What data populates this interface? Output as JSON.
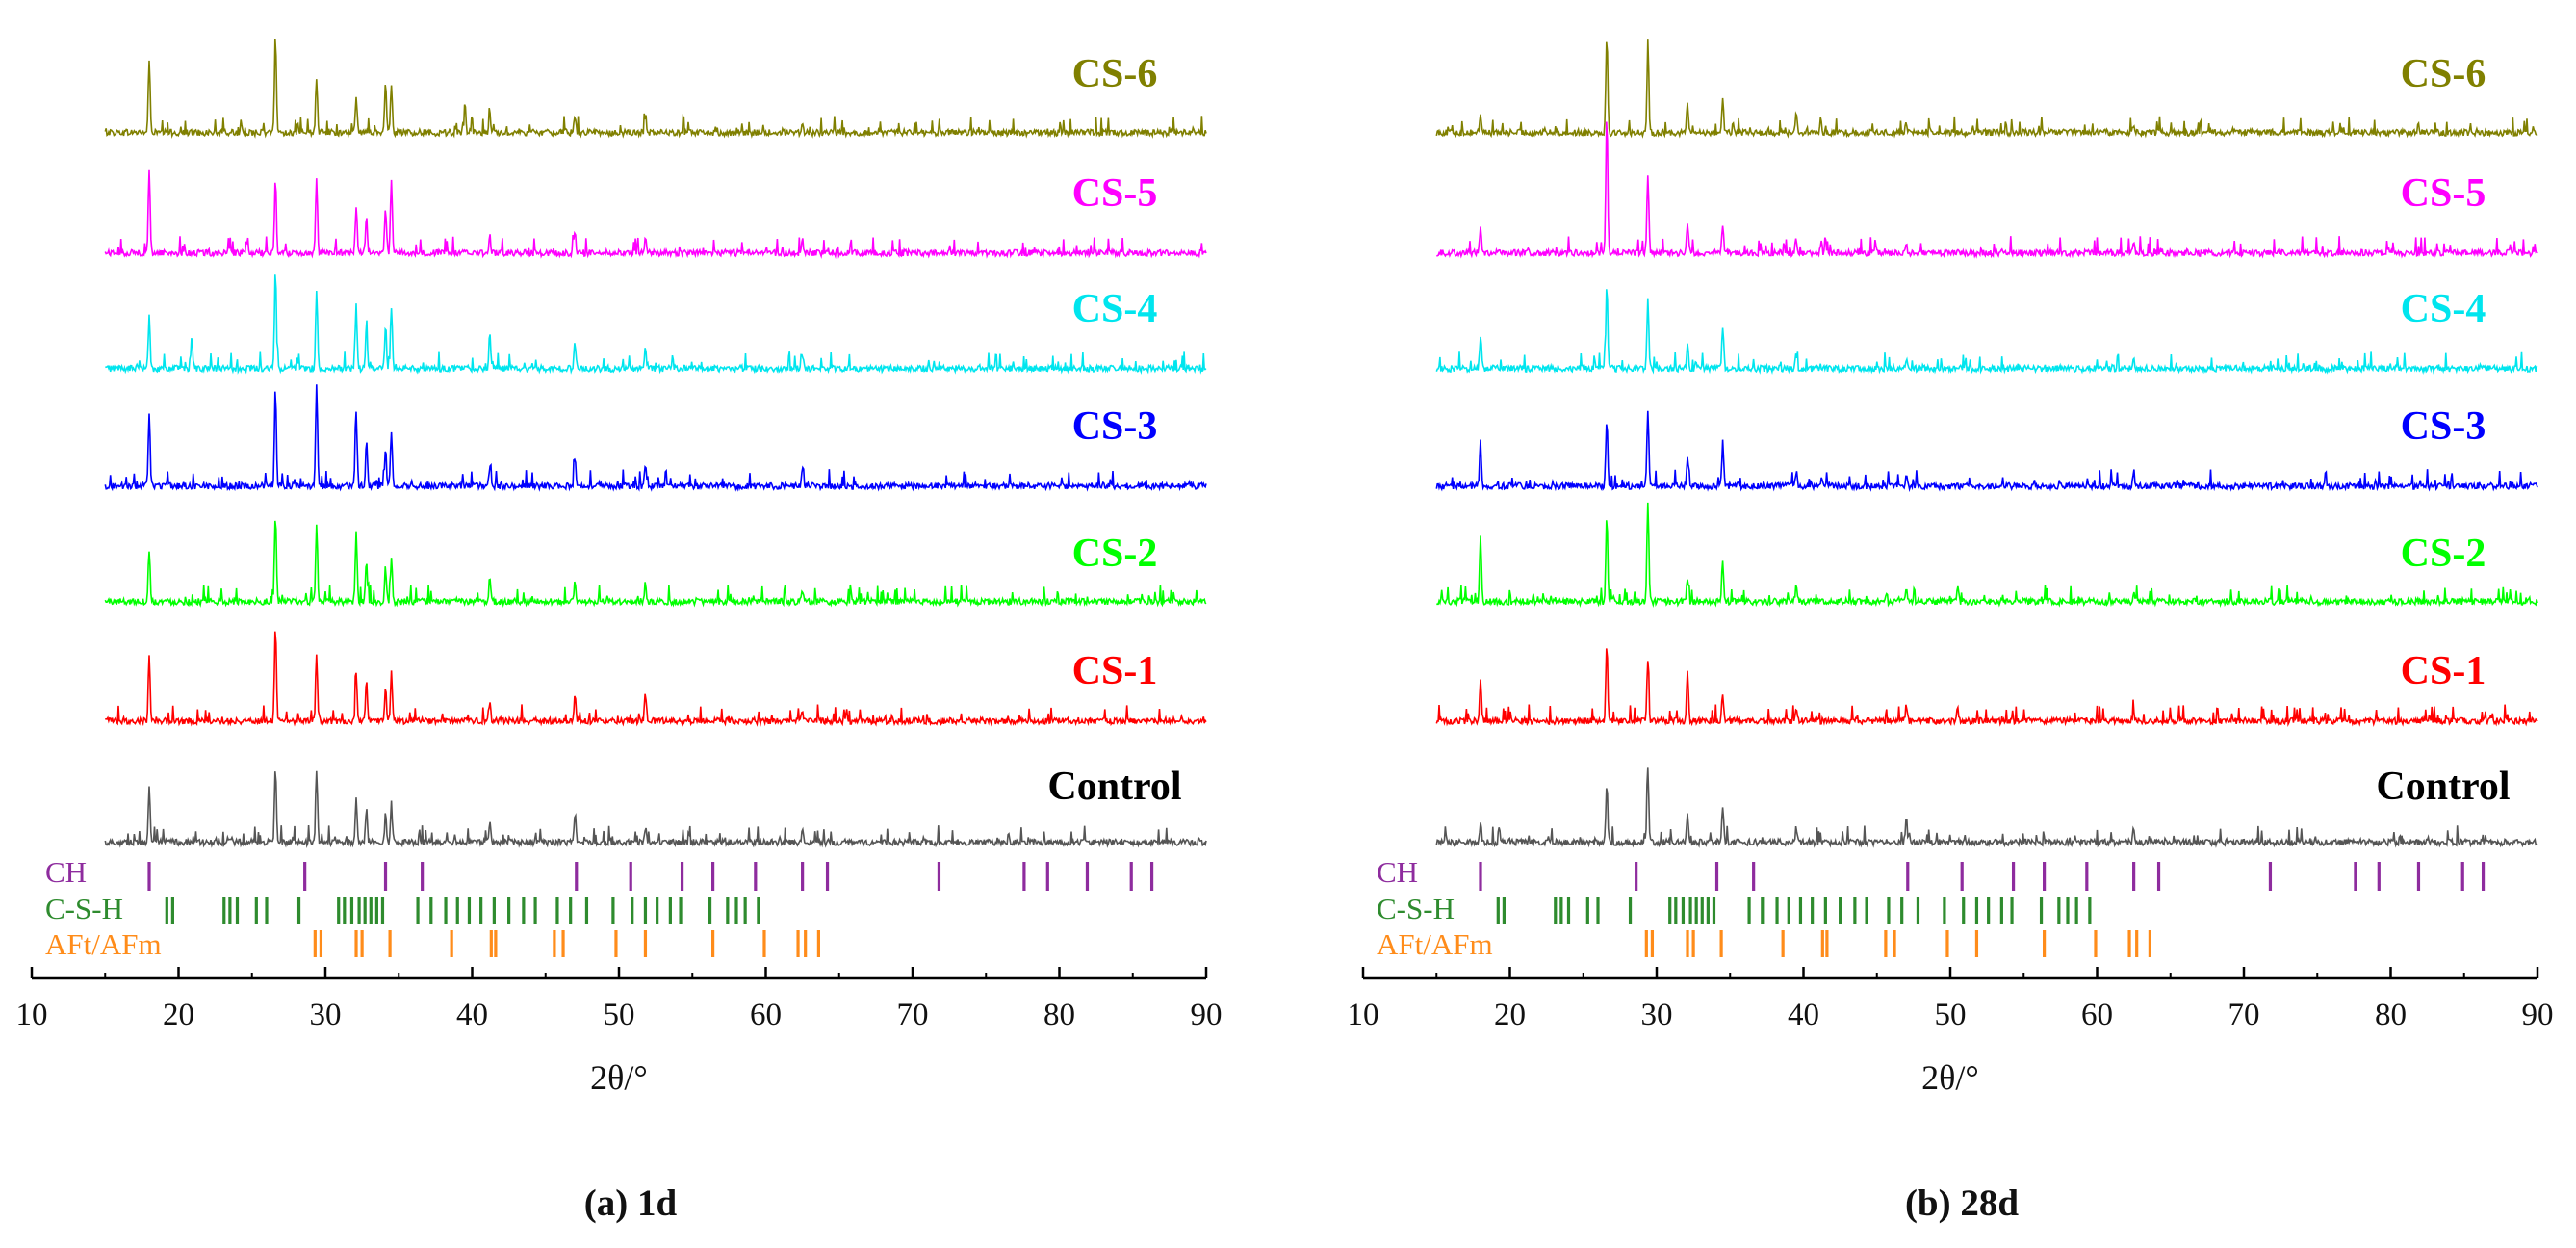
{
  "chart_data": [
    {
      "type": "line",
      "subtype": "stacked XRD patterns",
      "caption": "(a) 1d",
      "xlabel": "2θ/°",
      "xlim": [
        10,
        90
      ],
      "xticks": [
        10,
        20,
        30,
        40,
        50,
        60,
        70,
        80,
        90
      ],
      "x_range_measured": [
        15,
        90
      ],
      "grid": false,
      "series": [
        {
          "name": "CS-6",
          "color": "#808000",
          "peaks": [
            [
              18.0,
              0.75
            ],
            [
              26.6,
              1.0
            ],
            [
              29.4,
              0.55
            ],
            [
              32.1,
              0.35
            ],
            [
              34.1,
              0.5
            ],
            [
              34.5,
              0.5
            ],
            [
              39.5,
              0.15
            ],
            [
              41.2,
              0.18
            ],
            [
              47.0,
              0.18
            ],
            [
              51.8,
              0.15
            ],
            [
              62.5,
              0.1
            ]
          ]
        },
        {
          "name": "CS-5",
          "color": "#ff00ff",
          "peaks": [
            [
              18.0,
              0.85
            ],
            [
              26.6,
              0.75
            ],
            [
              29.4,
              0.8
            ],
            [
              32.1,
              0.5
            ],
            [
              32.8,
              0.35
            ],
            [
              34.1,
              0.45
            ],
            [
              34.5,
              0.75
            ],
            [
              41.2,
              0.2
            ],
            [
              47.0,
              0.25
            ],
            [
              51.8,
              0.15
            ],
            [
              62.5,
              0.15
            ]
          ]
        },
        {
          "name": "CS-4",
          "color": "#00e5ee",
          "peaks": [
            [
              18.0,
              0.55
            ],
            [
              20.9,
              0.35
            ],
            [
              26.6,
              1.0
            ],
            [
              29.4,
              0.8
            ],
            [
              32.1,
              0.65
            ],
            [
              32.8,
              0.45
            ],
            [
              34.1,
              0.45
            ],
            [
              34.5,
              0.65
            ],
            [
              41.2,
              0.35
            ],
            [
              47.0,
              0.25
            ],
            [
              51.8,
              0.2
            ],
            [
              62.5,
              0.15
            ]
          ]
        },
        {
          "name": "CS-3",
          "color": "#0000ff",
          "peaks": [
            [
              18.0,
              0.75
            ],
            [
              26.6,
              1.0
            ],
            [
              29.4,
              1.05
            ],
            [
              32.1,
              0.8
            ],
            [
              32.8,
              0.45
            ],
            [
              34.1,
              0.4
            ],
            [
              34.5,
              0.55
            ],
            [
              41.2,
              0.2
            ],
            [
              47.0,
              0.3
            ],
            [
              51.8,
              0.2
            ],
            [
              62.5,
              0.2
            ]
          ]
        },
        {
          "name": "CS-2",
          "color": "#00ff00",
          "peaks": [
            [
              18.0,
              0.55
            ],
            [
              26.6,
              0.9
            ],
            [
              29.4,
              0.8
            ],
            [
              32.1,
              0.7
            ],
            [
              32.8,
              0.4
            ],
            [
              34.1,
              0.35
            ],
            [
              34.5,
              0.45
            ],
            [
              41.2,
              0.25
            ],
            [
              47.0,
              0.2
            ],
            [
              51.8,
              0.2
            ],
            [
              62.5,
              0.1
            ]
          ]
        },
        {
          "name": "CS-1",
          "color": "#ff0000",
          "peaks": [
            [
              18.0,
              0.7
            ],
            [
              26.6,
              1.0
            ],
            [
              29.4,
              0.7
            ],
            [
              32.1,
              0.5
            ],
            [
              32.8,
              0.4
            ],
            [
              34.1,
              0.35
            ],
            [
              34.5,
              0.5
            ],
            [
              41.2,
              0.2
            ],
            [
              47.0,
              0.25
            ],
            [
              51.8,
              0.3
            ],
            [
              62.5,
              0.1
            ]
          ]
        },
        {
          "name": "Control",
          "color": "#555555",
          "peaks": [
            [
              18.0,
              0.6
            ],
            [
              26.6,
              0.8
            ],
            [
              29.4,
              0.75
            ],
            [
              32.1,
              0.45
            ],
            [
              32.8,
              0.35
            ],
            [
              34.1,
              0.3
            ],
            [
              34.5,
              0.4
            ],
            [
              41.2,
              0.2
            ],
            [
              47.0,
              0.3
            ],
            [
              51.8,
              0.15
            ],
            [
              62.5,
              0.15
            ]
          ]
        }
      ],
      "reference_phases": [
        {
          "name": "CH",
          "color": "#8e2c9e",
          "positions": [
            18.0,
            28.6,
            34.1,
            36.6,
            47.1,
            50.8,
            54.3,
            56.4,
            59.3,
            62.5,
            64.2,
            71.8,
            77.6,
            79.2,
            81.9,
            84.9,
            86.3
          ]
        },
        {
          "name": "C-S-H",
          "color": "#2e8b2e",
          "positions": [
            19.2,
            19.6,
            23.1,
            23.5,
            24.0,
            25.3,
            26.0,
            28.2,
            30.9,
            31.3,
            31.8,
            32.3,
            32.7,
            33.1,
            33.5,
            33.9,
            36.3,
            37.2,
            38.2,
            39.0,
            39.8,
            40.6,
            41.5,
            42.5,
            43.5,
            44.3,
            45.8,
            46.7,
            47.8,
            49.6,
            50.9,
            51.8,
            52.6,
            53.5,
            54.2,
            56.2,
            57.4,
            58.0,
            58.6,
            59.5
          ]
        },
        {
          "name": "AFt/AFm",
          "color": "#ff8c1a",
          "positions": [
            29.3,
            29.7,
            32.1,
            32.5,
            34.4,
            38.6,
            41.3,
            41.6,
            45.6,
            46.2,
            49.8,
            51.8,
            56.4,
            59.9,
            62.2,
            62.7,
            63.6
          ]
        }
      ]
    },
    {
      "type": "line",
      "subtype": "stacked XRD patterns",
      "caption": "(b) 28d",
      "xlabel": "2θ/°",
      "xlim": [
        10,
        90
      ],
      "xticks": [
        10,
        20,
        30,
        40,
        50,
        60,
        70,
        80,
        90
      ],
      "x_range_measured": [
        15,
        90
      ],
      "grid": false,
      "series": [
        {
          "name": "CS-6",
          "color": "#808000",
          "peaks": [
            [
              18.0,
              0.2
            ],
            [
              26.6,
              1.0
            ],
            [
              29.4,
              0.8
            ],
            [
              32.1,
              0.3
            ],
            [
              34.5,
              0.35
            ],
            [
              39.5,
              0.2
            ],
            [
              41.2,
              0.1
            ],
            [
              47.0,
              0.1
            ],
            [
              62.5,
              0.1
            ]
          ]
        },
        {
          "name": "CS-5",
          "color": "#ff00ff",
          "peaks": [
            [
              18.0,
              0.3
            ],
            [
              26.6,
              1.4
            ],
            [
              29.4,
              0.8
            ],
            [
              32.1,
              0.3
            ],
            [
              34.5,
              0.3
            ],
            [
              39.5,
              0.15
            ],
            [
              41.2,
              0.1
            ],
            [
              47.0,
              0.1
            ],
            [
              62.5,
              0.1
            ]
          ]
        },
        {
          "name": "CS-4",
          "color": "#00e5ee",
          "peaks": [
            [
              18.0,
              0.35
            ],
            [
              26.6,
              0.85
            ],
            [
              29.4,
              0.7
            ],
            [
              32.1,
              0.25
            ],
            [
              34.5,
              0.45
            ],
            [
              39.5,
              0.15
            ],
            [
              47.0,
              0.1
            ],
            [
              62.5,
              0.1
            ]
          ]
        },
        {
          "name": "CS-3",
          "color": "#0000ff",
          "peaks": [
            [
              18.0,
              0.45
            ],
            [
              26.6,
              0.7
            ],
            [
              29.4,
              0.75
            ],
            [
              32.1,
              0.3
            ],
            [
              34.5,
              0.45
            ],
            [
              39.5,
              0.15
            ],
            [
              47.0,
              0.1
            ],
            [
              62.5,
              0.15
            ]
          ]
        },
        {
          "name": "CS-2",
          "color": "#00ff00",
          "peaks": [
            [
              18.0,
              0.7
            ],
            [
              26.6,
              0.9
            ],
            [
              29.4,
              1.05
            ],
            [
              32.1,
              0.25
            ],
            [
              34.5,
              0.45
            ],
            [
              39.5,
              0.15
            ],
            [
              47.0,
              0.15
            ],
            [
              50.5,
              0.15
            ],
            [
              62.5,
              0.1
            ]
          ]
        },
        {
          "name": "CS-1",
          "color": "#ff0000",
          "peaks": [
            [
              18.0,
              0.4
            ],
            [
              26.6,
              0.8
            ],
            [
              29.4,
              0.6
            ],
            [
              32.1,
              0.55
            ],
            [
              34.5,
              0.3
            ],
            [
              39.5,
              0.15
            ],
            [
              47.0,
              0.15
            ],
            [
              50.5,
              0.15
            ],
            [
              62.5,
              0.1
            ]
          ]
        },
        {
          "name": "Control",
          "color": "#555555",
          "peaks": [
            [
              18.0,
              0.2
            ],
            [
              26.6,
              0.6
            ],
            [
              29.4,
              0.75
            ],
            [
              32.1,
              0.3
            ],
            [
              34.5,
              0.35
            ],
            [
              39.5,
              0.15
            ],
            [
              47.0,
              0.25
            ],
            [
              62.5,
              0.15
            ]
          ]
        }
      ],
      "reference_phases": [
        {
          "name": "CH",
          "color": "#8e2c9e",
          "positions": [
            18.0,
            28.6,
            34.1,
            36.6,
            47.1,
            50.8,
            54.3,
            56.4,
            59.3,
            62.5,
            64.2,
            71.8,
            77.6,
            79.2,
            81.9,
            84.9,
            86.3
          ]
        },
        {
          "name": "C-S-H",
          "color": "#2e8b2e",
          "positions": [
            19.2,
            19.6,
            23.1,
            23.5,
            24.0,
            25.3,
            26.0,
            28.2,
            30.9,
            31.3,
            31.8,
            32.3,
            32.7,
            33.1,
            33.5,
            33.9,
            36.3,
            37.2,
            38.2,
            39.0,
            39.8,
            40.6,
            41.5,
            42.5,
            43.5,
            44.3,
            45.8,
            46.7,
            47.8,
            49.6,
            50.9,
            51.8,
            52.6,
            53.5,
            54.2,
            56.2,
            57.4,
            58.0,
            58.6,
            59.5
          ]
        },
        {
          "name": "AFt/AFm",
          "color": "#ff8c1a",
          "positions": [
            29.3,
            29.7,
            32.1,
            32.5,
            34.4,
            38.6,
            41.3,
            41.6,
            45.6,
            46.2,
            49.8,
            51.8,
            56.4,
            59.9,
            62.2,
            62.7,
            63.6
          ]
        }
      ]
    }
  ]
}
